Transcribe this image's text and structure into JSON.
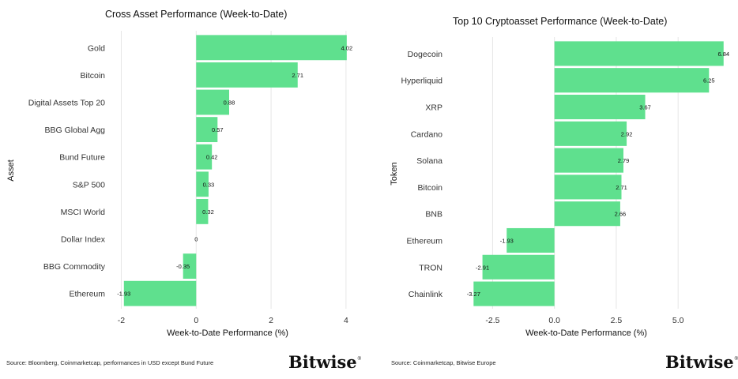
{
  "chart_data": [
    {
      "type": "bar",
      "orientation": "horizontal",
      "title": "Cross Asset Performance (Week-to-Date)",
      "xlabel": "Week-to-Date Performance (%)",
      "ylabel": "Asset",
      "categories": [
        "Gold",
        "Bitcoin",
        "Digital Assets Top 20",
        "BBG Global Agg",
        "Bund Future",
        "S&P 500",
        "MSCI World",
        "Dollar Index",
        "BBG Commodity",
        "Ethereum"
      ],
      "values": [
        4.02,
        2.71,
        0.88,
        0.57,
        0.42,
        0.33,
        0.32,
        0,
        -0.35,
        -1.93
      ],
      "value_labels": [
        "4.02",
        "2.71",
        "0.88",
        "0.57",
        "0.42",
        "0.33",
        "0.32",
        "0",
        "-0.35",
        "-1.93"
      ],
      "xlim": [
        -2.2,
        4.2
      ],
      "xticks": [
        -2,
        0,
        2,
        4
      ],
      "xtick_labels": [
        "-2",
        "0",
        "2",
        "4"
      ],
      "grid": true,
      "color": "#5fe08e",
      "source": "Source: Bloomberg, Coinmarketcap, performances in USD except Bund Future",
      "logo": "Bitwise",
      "logo_mark": "®"
    },
    {
      "type": "bar",
      "orientation": "horizontal",
      "title": "Top 10 Cryptoasset Performance (Week-to-Date)",
      "xlabel": "Week-to-Date Performance (%)",
      "ylabel": "Token",
      "categories": [
        "Dogecoin",
        "Hyperliquid",
        "XRP",
        "Cardano",
        "Solana",
        "Bitcoin",
        "BNB",
        "Ethereum",
        "TRON",
        "Chainlink"
      ],
      "values": [
        6.84,
        6.25,
        3.67,
        2.92,
        2.79,
        2.71,
        2.66,
        -1.93,
        -2.91,
        -3.27
      ],
      "value_labels": [
        "6.84",
        "6.25",
        "3.67",
        "2.92",
        "2.79",
        "2.71",
        "2.66",
        "-1.93",
        "-2.91",
        "-3.27"
      ],
      "xlim": [
        -3.6,
        7.2
      ],
      "xticks": [
        -2.5,
        0,
        2.5,
        5
      ],
      "xtick_labels": [
        "-2.5",
        "0.0",
        "2.5",
        "5.0"
      ],
      "grid": true,
      "color": "#5fe08e",
      "source": "Source: Coinmarketcap, Bitwise Europe",
      "logo": "Bitwise",
      "logo_mark": "®"
    }
  ]
}
